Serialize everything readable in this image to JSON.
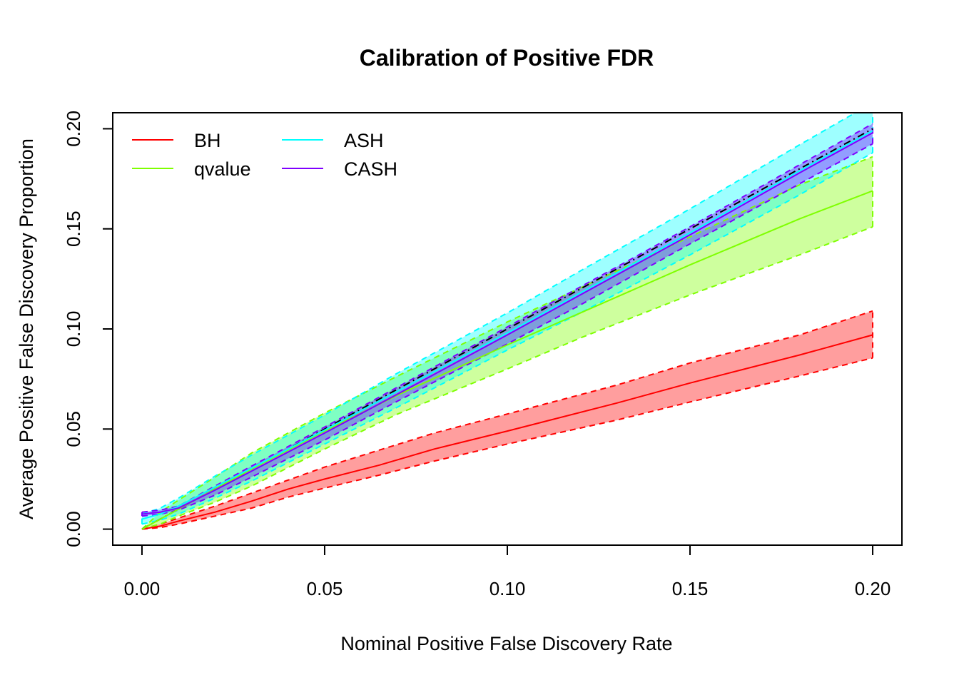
{
  "chart_data": {
    "type": "line",
    "title": "Calibration of Positive FDR",
    "xlabel": "Nominal Positive False Discovery Rate",
    "ylabel": "Average Positive False Discovery Proportion",
    "xlim": [
      -0.008,
      0.208
    ],
    "ylim": [
      -0.008,
      0.208
    ],
    "xticks": [
      0.0,
      0.05,
      0.1,
      0.15,
      0.2
    ],
    "yticks": [
      0.0,
      0.05,
      0.1,
      0.15,
      0.2
    ],
    "xtick_labels": [
      "0.00",
      "0.05",
      "0.10",
      "0.15",
      "0.20"
    ],
    "ytick_labels": [
      "0.00",
      "0.05",
      "0.10",
      "0.15",
      "0.20"
    ],
    "grid": false,
    "legend_position": "top-left",
    "reference_line": {
      "style": "dash-dot",
      "color": "#000000",
      "x": [
        0,
        0.2
      ],
      "y": [
        0,
        0.2
      ]
    },
    "series": [
      {
        "name": "BH",
        "color": "#ff0000",
        "fill": "rgba(255,0,0,0.38)",
        "x": [
          0,
          0.005,
          0.01,
          0.02,
          0.03,
          0.04,
          0.05,
          0.065,
          0.08,
          0.1,
          0.13,
          0.15,
          0.165,
          0.18,
          0.2
        ],
        "y": [
          0,
          0.0015,
          0.004,
          0.0085,
          0.014,
          0.02,
          0.025,
          0.032,
          0.04,
          0.049,
          0.063,
          0.073,
          0.08,
          0.087,
          0.097
        ],
        "lower": [
          0,
          0.0008,
          0.0025,
          0.0065,
          0.0105,
          0.016,
          0.0205,
          0.027,
          0.034,
          0.0425,
          0.0545,
          0.0635,
          0.07,
          0.0765,
          0.0855
        ],
        "upper": [
          0,
          0.0025,
          0.0055,
          0.0115,
          0.018,
          0.0245,
          0.031,
          0.0395,
          0.048,
          0.0575,
          0.072,
          0.083,
          0.09,
          0.097,
          0.109
        ]
      },
      {
        "name": "qvalue",
        "color": "#7fff00",
        "fill": "rgba(127,255,0,0.38)",
        "x": [
          0,
          0.005,
          0.01,
          0.02,
          0.03,
          0.05,
          0.07,
          0.1,
          0.12,
          0.15,
          0.18,
          0.2
        ],
        "y": [
          0,
          0.005,
          0.01,
          0.02,
          0.03,
          0.049,
          0.067,
          0.092,
          0.108,
          0.132,
          0.155,
          0.169
        ],
        "lower": [
          0,
          0.0025,
          0.0065,
          0.0135,
          0.0215,
          0.04,
          0.0575,
          0.08,
          0.0955,
          0.117,
          0.137,
          0.151
        ],
        "upper": [
          0,
          0.0085,
          0.0145,
          0.026,
          0.038,
          0.058,
          0.0765,
          0.1035,
          0.1205,
          0.146,
          0.172,
          0.186
        ]
      },
      {
        "name": "ASH",
        "color": "#00ffff",
        "fill": "rgba(0,255,255,0.38)",
        "x": [
          0,
          0.005,
          0.01,
          0.02,
          0.03,
          0.05,
          0.07,
          0.1,
          0.12,
          0.15,
          0.18,
          0.2
        ],
        "y": [
          0.005,
          0.0075,
          0.0115,
          0.021,
          0.0305,
          0.0495,
          0.069,
          0.098,
          0.118,
          0.148,
          0.179,
          0.199
        ],
        "lower": [
          0.0025,
          0.0045,
          0.0075,
          0.0155,
          0.024,
          0.0425,
          0.061,
          0.0895,
          0.108,
          0.137,
          0.167,
          0.188
        ],
        "upper": [
          0.0075,
          0.0105,
          0.0155,
          0.0265,
          0.037,
          0.057,
          0.078,
          0.108,
          0.129,
          0.16,
          0.192,
          0.213
        ]
      },
      {
        "name": "CASH",
        "color": "#7f00ff",
        "fill": "rgba(127,0,255,0.38)",
        "x": [
          0,
          0.005,
          0.01,
          0.02,
          0.03,
          0.05,
          0.07,
          0.1,
          0.12,
          0.15,
          0.18,
          0.2
        ],
        "y": [
          0.0075,
          0.0085,
          0.0105,
          0.0195,
          0.029,
          0.048,
          0.0675,
          0.097,
          0.117,
          0.147,
          0.178,
          0.198
        ],
        "lower": [
          0.0065,
          0.0075,
          0.0095,
          0.017,
          0.026,
          0.0445,
          0.064,
          0.0925,
          0.112,
          0.1425,
          0.1725,
          0.1925
        ],
        "upper": [
          0.0085,
          0.0095,
          0.0115,
          0.0215,
          0.0315,
          0.051,
          0.071,
          0.101,
          0.121,
          0.151,
          0.182,
          0.2025
        ]
      }
    ]
  }
}
